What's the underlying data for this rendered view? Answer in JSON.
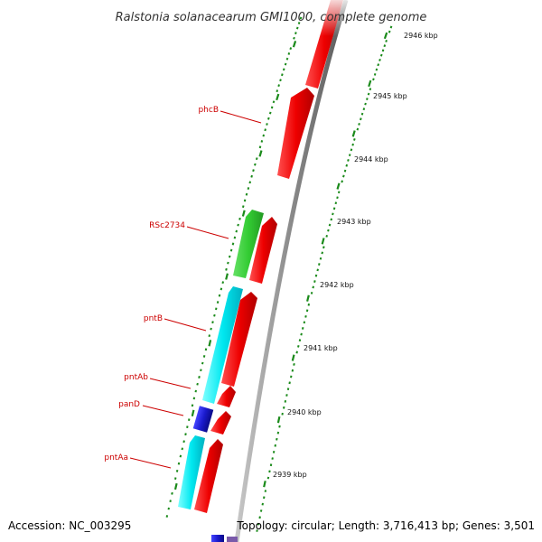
{
  "title": "Ralstonia solanacearum GMI1000, complete genome",
  "footer": {
    "accession": "Accession: NC_003295",
    "summary": "Topology: circular; Length: 3,716,413 bp; Genes: 3,501"
  },
  "colors": {
    "backbone": "#8a8a8a",
    "forward_gene": "#ee0000",
    "reverse_gene": "#00e5ee",
    "rna_gene": "#33cc33",
    "other_gene": "#1a1acc",
    "tick": "#1a8a1a",
    "label": "#cc0000"
  },
  "ticks": [
    "2946 kbp",
    "2945 kbp",
    "2944 kbp",
    "2943 kbp",
    "2942 kbp",
    "2941 kbp",
    "2940 kbp",
    "2939 kbp"
  ],
  "genes": [
    {
      "label": "phcB",
      "strand": "forward"
    },
    {
      "label": "RSc2734",
      "strand": "reverse"
    },
    {
      "label": "pntB",
      "strand": "reverse"
    },
    {
      "label": "pntAb",
      "strand": "reverse"
    },
    {
      "label": "panD",
      "strand": "reverse"
    },
    {
      "label": "pntAa",
      "strand": "reverse"
    }
  ]
}
